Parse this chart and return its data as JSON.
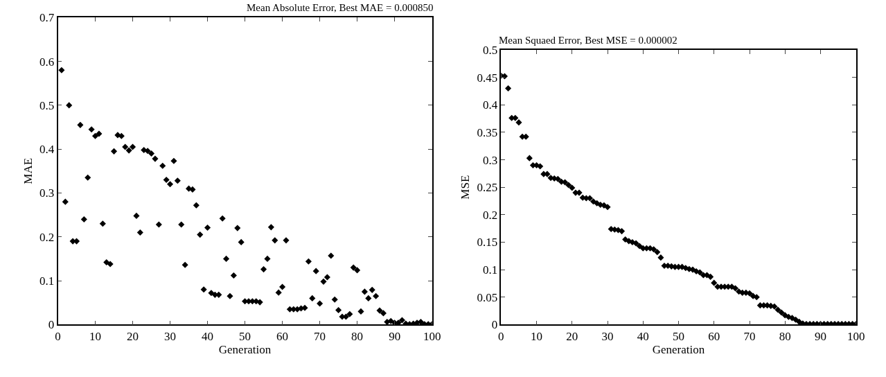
{
  "chart_data": [
    {
      "type": "scatter",
      "title": "Mean Absolute Error, Best MAE = 0.000850",
      "xlabel": "Generation",
      "ylabel": "MAE",
      "color": "#000000",
      "marker": "diamond",
      "xlim": [
        0,
        100
      ],
      "ylim": [
        0,
        0.7
      ],
      "xticks": [
        0,
        10,
        20,
        30,
        40,
        50,
        60,
        70,
        80,
        90,
        100
      ],
      "yticks": [
        0,
        0.1,
        0.2,
        0.3,
        0.4,
        0.5,
        0.6,
        0.7
      ],
      "x": [
        1,
        2,
        3,
        4,
        5,
        6,
        7,
        8,
        9,
        10,
        11,
        12,
        13,
        14,
        15,
        16,
        17,
        18,
        19,
        20,
        21,
        22,
        23,
        24,
        25,
        26,
        27,
        28,
        29,
        30,
        31,
        32,
        33,
        34,
        35,
        36,
        37,
        38,
        39,
        40,
        41,
        42,
        43,
        44,
        45,
        46,
        47,
        48,
        49,
        50,
        51,
        52,
        53,
        54,
        55,
        56,
        57,
        58,
        59,
        60,
        61,
        62,
        63,
        64,
        65,
        66,
        67,
        68,
        69,
        70,
        71,
        72,
        73,
        74,
        75,
        76,
        77,
        78,
        79,
        80,
        81,
        82,
        83,
        84,
        85,
        86,
        87,
        88,
        89,
        90,
        91,
        92,
        93,
        94,
        95,
        96,
        97,
        98,
        99,
        100
      ],
      "values": [
        0.58,
        0.28,
        0.5,
        0.19,
        0.19,
        0.455,
        0.24,
        0.335,
        0.445,
        0.43,
        0.435,
        0.23,
        0.142,
        0.138,
        0.395,
        0.432,
        0.43,
        0.405,
        0.397,
        0.405,
        0.248,
        0.21,
        0.398,
        0.396,
        0.39,
        0.378,
        0.228,
        0.362,
        0.33,
        0.32,
        0.373,
        0.328,
        0.228,
        0.136,
        0.31,
        0.308,
        0.272,
        0.205,
        0.08,
        0.221,
        0.072,
        0.068,
        0.068,
        0.242,
        0.15,
        0.065,
        0.112,
        0.22,
        0.188,
        0.053,
        0.053,
        0.053,
        0.053,
        0.051,
        0.126,
        0.15,
        0.222,
        0.192,
        0.073,
        0.086,
        0.192,
        0.035,
        0.035,
        0.035,
        0.037,
        0.038,
        0.144,
        0.06,
        0.122,
        0.048,
        0.098,
        0.108,
        0.157,
        0.057,
        0.033,
        0.018,
        0.018,
        0.024,
        0.13,
        0.124,
        0.03,
        0.075,
        0.06,
        0.079,
        0.065,
        0.032,
        0.026,
        0.006,
        0.008,
        0.004,
        0.004,
        0.01,
        0.002,
        0.001,
        0.002,
        0.004,
        0.006,
        0.001,
        0.001,
        0.001
      ]
    },
    {
      "type": "scatter",
      "title": "Mean Squaed Error, Best MSE = 0.000002",
      "xlabel": "Generation",
      "ylabel": "MSE",
      "color": "#000000",
      "marker": "diamond",
      "xlim": [
        0,
        100
      ],
      "ylim": [
        0,
        0.5
      ],
      "xticks": [
        0,
        10,
        20,
        30,
        40,
        50,
        60,
        70,
        80,
        90,
        100
      ],
      "yticks": [
        0,
        0.05,
        0.1,
        0.15,
        0.2,
        0.25,
        0.3,
        0.35,
        0.4,
        0.45,
        0.5
      ],
      "x": [
        0,
        1,
        2,
        3,
        4,
        5,
        6,
        7,
        8,
        9,
        10,
        11,
        12,
        13,
        14,
        15,
        16,
        17,
        18,
        19,
        20,
        21,
        22,
        23,
        24,
        25,
        26,
        27,
        28,
        29,
        30,
        31,
        32,
        33,
        34,
        35,
        36,
        37,
        38,
        39,
        40,
        41,
        42,
        43,
        44,
        45,
        46,
        47,
        48,
        49,
        50,
        51,
        52,
        53,
        54,
        55,
        56,
        57,
        58,
        59,
        60,
        61,
        62,
        63,
        64,
        65,
        66,
        67,
        68,
        69,
        70,
        71,
        72,
        73,
        74,
        75,
        76,
        77,
        78,
        79,
        80,
        81,
        82,
        83,
        84,
        85,
        86,
        87,
        88,
        89,
        90,
        91,
        92,
        93,
        94,
        95,
        96,
        97,
        98,
        99,
        100
      ],
      "values": [
        0.453,
        0.452,
        0.43,
        0.376,
        0.376,
        0.368,
        0.342,
        0.342,
        0.303,
        0.29,
        0.29,
        0.288,
        0.274,
        0.274,
        0.267,
        0.266,
        0.265,
        0.26,
        0.259,
        0.254,
        0.249,
        0.24,
        0.24,
        0.231,
        0.23,
        0.23,
        0.224,
        0.221,
        0.218,
        0.217,
        0.214,
        0.174,
        0.173,
        0.172,
        0.17,
        0.155,
        0.152,
        0.15,
        0.148,
        0.143,
        0.139,
        0.139,
        0.139,
        0.137,
        0.132,
        0.122,
        0.107,
        0.107,
        0.106,
        0.105,
        0.105,
        0.105,
        0.103,
        0.101,
        0.1,
        0.097,
        0.095,
        0.09,
        0.09,
        0.087,
        0.076,
        0.069,
        0.069,
        0.069,
        0.069,
        0.069,
        0.066,
        0.06,
        0.058,
        0.058,
        0.057,
        0.052,
        0.05,
        0.035,
        0.035,
        0.035,
        0.034,
        0.033,
        0.027,
        0.022,
        0.017,
        0.014,
        0.012,
        0.009,
        0.005,
        0.002,
        0.001,
        0.001,
        0.001,
        0.001,
        0.001,
        0.001,
        0.001,
        0.001,
        0.001,
        0.001,
        0.001,
        0.001,
        0.001,
        0.001,
        0.001
      ]
    }
  ]
}
